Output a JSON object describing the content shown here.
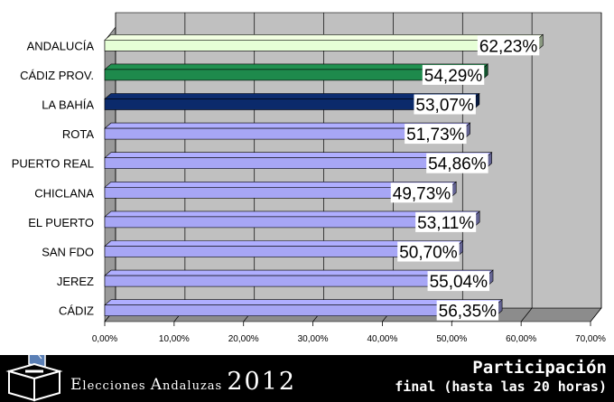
{
  "chart_data": {
    "type": "bar",
    "orientation": "horizontal",
    "categories": [
      "ANDALUCÍA",
      "CÁDIZ PROV.",
      "LA BAHÍA",
      "ROTA",
      "PUERTO REAL",
      "CHICLANA",
      "EL PUERTO",
      "SAN FDO",
      "JEREZ",
      "CÁDIZ"
    ],
    "values": [
      62.23,
      54.29,
      53.07,
      51.73,
      54.86,
      49.73,
      53.11,
      50.7,
      55.04,
      56.35
    ],
    "value_labels": [
      "62,23%",
      "54,29%",
      "53,07%",
      "51,73%",
      "54,86%",
      "49,73%",
      "53,11%",
      "50,70%",
      "55,04%",
      "56,35%"
    ],
    "colors": [
      "#e6ffd6",
      "#1e8a4c",
      "#0b2a6b",
      "#a7a6f5",
      "#a7a6f5",
      "#a7a6f5",
      "#a7a6f5",
      "#a7a6f5",
      "#a7a6f5",
      "#a7a6f5"
    ],
    "xlim": [
      0,
      70
    ],
    "xticks": [
      "0,00%",
      "10,00%",
      "20,00%",
      "30,00%",
      "40,00%",
      "50,00%",
      "60,00%",
      "70,00%"
    ],
    "grid": true,
    "background": "#c0c0c0"
  },
  "footer": {
    "title_parts": [
      "E",
      "lecciones ",
      "A",
      "ndaluzas "
    ],
    "year": "2012",
    "subtitle_line1": "Participación",
    "subtitle_line2": "final (hasta las 20 horas)"
  }
}
